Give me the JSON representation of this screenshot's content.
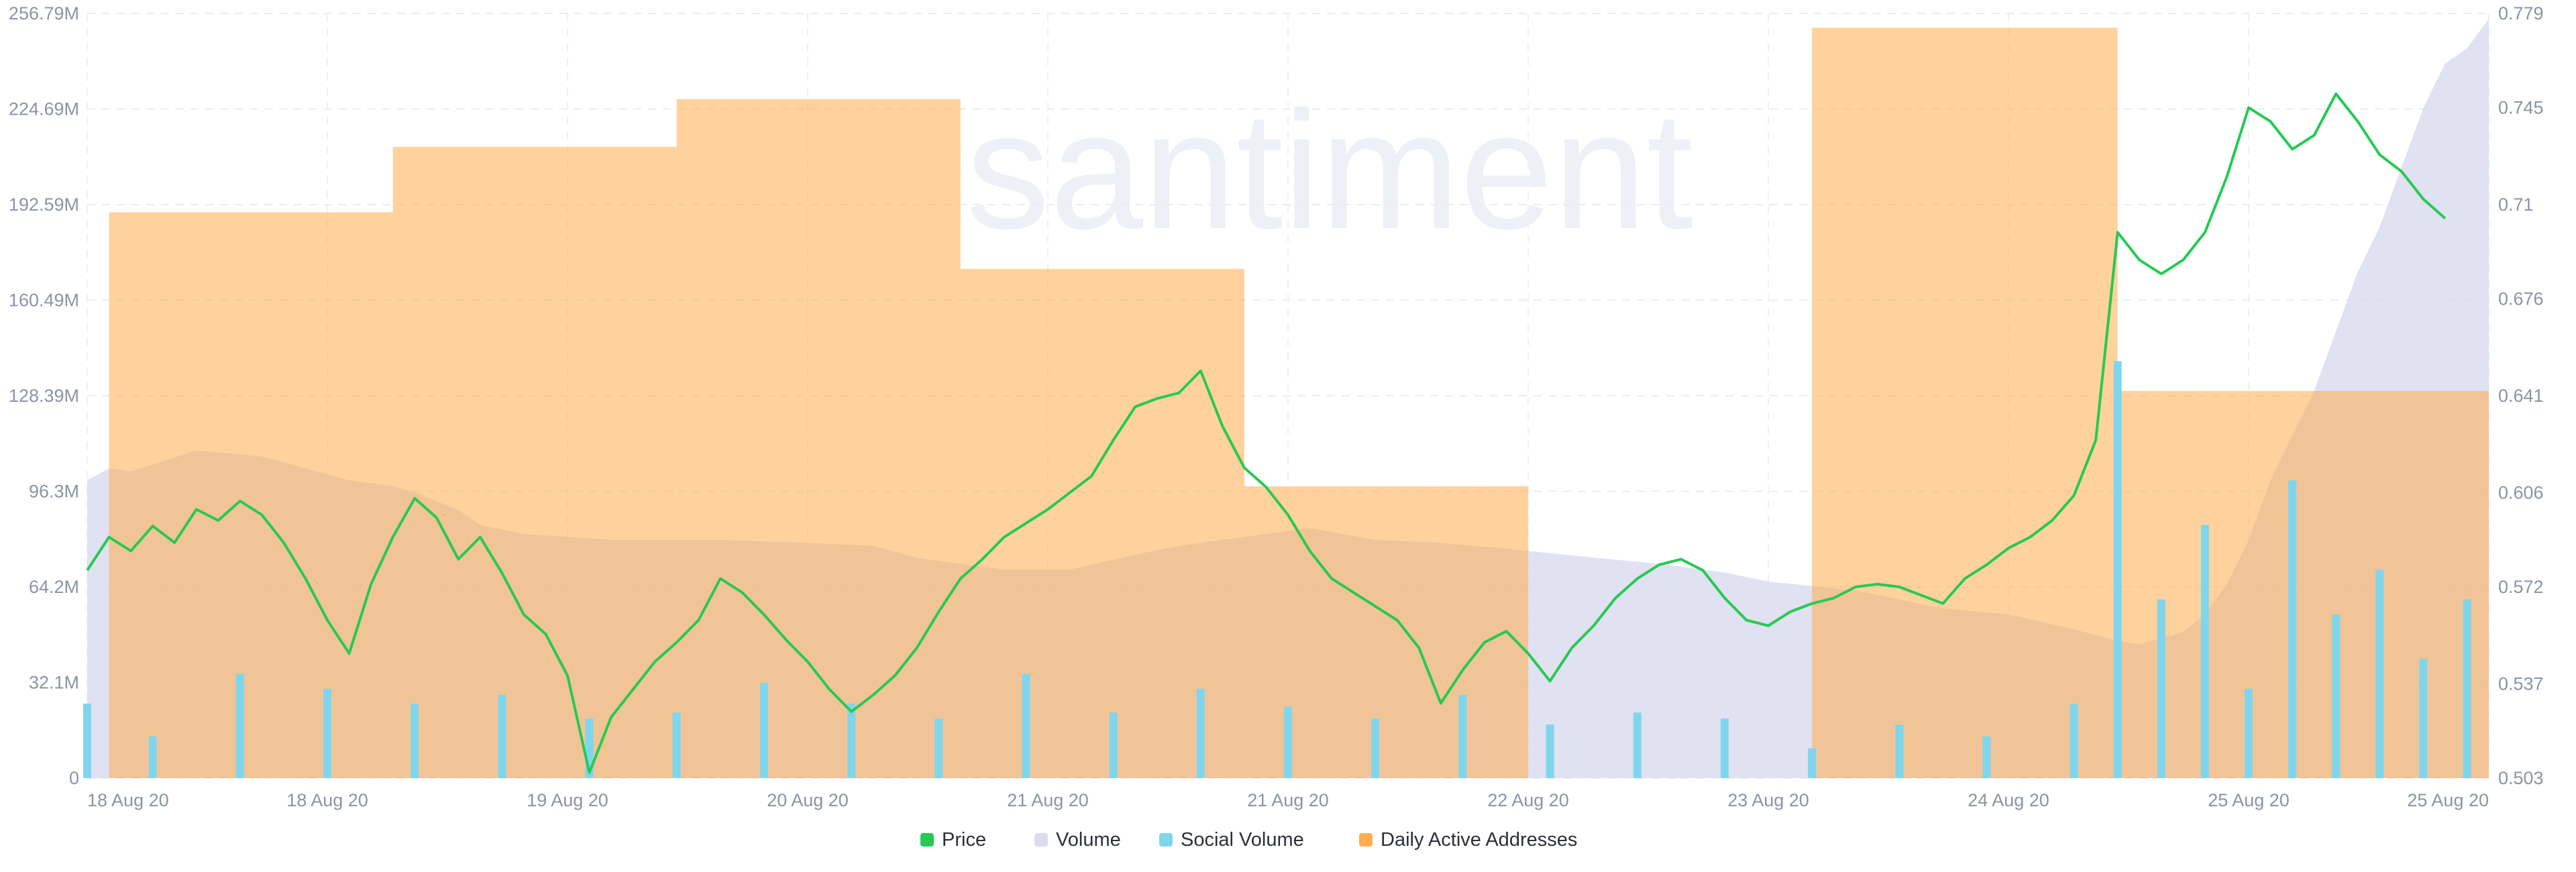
{
  "watermark": "santiment",
  "chart_data": {
    "type": "combo",
    "x_tick_labels": [
      "18 Aug 20",
      "18 Aug 20",
      "19 Aug 20",
      "20 Aug 20",
      "21 Aug 20",
      "21 Aug 20",
      "22 Aug 20",
      "23 Aug 20",
      "24 Aug 20",
      "25 Aug 20",
      "25 Aug 20"
    ],
    "y_left": {
      "range": [
        0,
        256.79
      ],
      "tick_values": [
        0,
        32.1,
        64.2,
        96.3,
        128.39,
        160.49,
        192.59,
        224.69,
        256.79
      ],
      "tick_labels": [
        "0",
        "32.1M",
        "64.2M",
        "96.3M",
        "128.39M",
        "160.49M",
        "192.59M",
        "224.69M",
        "256.79M"
      ]
    },
    "y_right": {
      "range": [
        0.503,
        0.779
      ],
      "tick_values": [
        0.503,
        0.537,
        0.572,
        0.606,
        0.641,
        0.676,
        0.71,
        0.745,
        0.779
      ],
      "tick_labels": [
        "0.503",
        "0.537",
        "0.572",
        "0.606",
        "0.641",
        "0.676",
        "0.71",
        "0.745",
        "0.779"
      ]
    },
    "grid": true,
    "legend_position": "bottom-center",
    "series": [
      {
        "name": "Price",
        "type": "line",
        "axis": "right",
        "color": "#26c953",
        "points": [
          [
            0,
            0.578
          ],
          [
            1,
            0.59
          ],
          [
            2,
            0.585
          ],
          [
            3,
            0.594
          ],
          [
            4,
            0.588
          ],
          [
            5,
            0.6
          ],
          [
            6,
            0.596
          ],
          [
            7,
            0.603
          ],
          [
            8,
            0.598
          ],
          [
            9,
            0.588
          ],
          [
            10,
            0.575
          ],
          [
            11,
            0.56
          ],
          [
            12,
            0.548
          ],
          [
            13,
            0.573
          ],
          [
            14,
            0.59
          ],
          [
            15,
            0.604
          ],
          [
            16,
            0.597
          ],
          [
            17,
            0.582
          ],
          [
            18,
            0.59
          ],
          [
            19,
            0.577
          ],
          [
            20,
            0.562
          ],
          [
            21,
            0.555
          ],
          [
            22,
            0.54
          ],
          [
            23,
            0.505
          ],
          [
            24,
            0.525
          ],
          [
            25,
            0.535
          ],
          [
            26,
            0.545
          ],
          [
            27,
            0.552
          ],
          [
            28,
            0.56
          ],
          [
            29,
            0.575
          ],
          [
            30,
            0.57
          ],
          [
            31,
            0.562
          ],
          [
            32,
            0.553
          ],
          [
            33,
            0.545
          ],
          [
            34,
            0.535
          ],
          [
            35,
            0.527
          ],
          [
            36,
            0.533
          ],
          [
            37,
            0.54
          ],
          [
            38,
            0.55
          ],
          [
            39,
            0.563
          ],
          [
            40,
            0.575
          ],
          [
            41,
            0.582
          ],
          [
            42,
            0.59
          ],
          [
            43,
            0.595
          ],
          [
            44,
            0.6
          ],
          [
            45,
            0.606
          ],
          [
            46,
            0.612
          ],
          [
            47,
            0.625
          ],
          [
            48,
            0.637
          ],
          [
            49,
            0.64
          ],
          [
            50,
            0.642
          ],
          [
            51,
            0.65
          ],
          [
            52,
            0.63
          ],
          [
            53,
            0.615
          ],
          [
            54,
            0.608
          ],
          [
            55,
            0.598
          ],
          [
            56,
            0.585
          ],
          [
            57,
            0.575
          ],
          [
            58,
            0.57
          ],
          [
            59,
            0.565
          ],
          [
            60,
            0.56
          ],
          [
            61,
            0.55
          ],
          [
            62,
            0.53
          ],
          [
            63,
            0.542
          ],
          [
            64,
            0.552
          ],
          [
            65,
            0.556
          ],
          [
            66,
            0.548
          ],
          [
            67,
            0.538
          ],
          [
            68,
            0.55
          ],
          [
            69,
            0.558
          ],
          [
            70,
            0.568
          ],
          [
            71,
            0.575
          ],
          [
            72,
            0.58
          ],
          [
            73,
            0.582
          ],
          [
            74,
            0.578
          ],
          [
            75,
            0.568
          ],
          [
            76,
            0.56
          ],
          [
            77,
            0.558
          ],
          [
            78,
            0.563
          ],
          [
            79,
            0.566
          ],
          [
            80,
            0.568
          ],
          [
            81,
            0.572
          ],
          [
            82,
            0.573
          ],
          [
            83,
            0.572
          ],
          [
            84,
            0.569
          ],
          [
            85,
            0.566
          ],
          [
            86,
            0.575
          ],
          [
            87,
            0.58
          ],
          [
            88,
            0.586
          ],
          [
            89,
            0.59
          ],
          [
            90,
            0.596
          ],
          [
            91,
            0.605
          ],
          [
            92,
            0.625
          ],
          [
            93,
            0.7
          ],
          [
            94,
            0.69
          ],
          [
            95,
            0.685
          ],
          [
            96,
            0.69
          ],
          [
            97,
            0.7
          ],
          [
            98,
            0.72
          ],
          [
            99,
            0.745
          ],
          [
            100,
            0.74
          ],
          [
            101,
            0.73
          ],
          [
            102,
            0.735
          ],
          [
            103,
            0.75
          ],
          [
            104,
            0.74
          ],
          [
            105,
            0.728
          ],
          [
            106,
            0.722
          ],
          [
            107,
            0.712
          ],
          [
            108,
            0.705
          ]
        ]
      },
      {
        "name": "Volume",
        "type": "area",
        "axis": "left",
        "color": "#dadcee",
        "points": [
          [
            0,
            100
          ],
          [
            1,
            104
          ],
          [
            2,
            103
          ],
          [
            5,
            110
          ],
          [
            8,
            108
          ],
          [
            10,
            104
          ],
          [
            12,
            100
          ],
          [
            14,
            98
          ],
          [
            15,
            96
          ],
          [
            17,
            90
          ],
          [
            18,
            85
          ],
          [
            20,
            82
          ],
          [
            24,
            80
          ],
          [
            29,
            80
          ],
          [
            33,
            79
          ],
          [
            36,
            78
          ],
          [
            38,
            74
          ],
          [
            42,
            70
          ],
          [
            45,
            70
          ],
          [
            48,
            75
          ],
          [
            50,
            78
          ],
          [
            54,
            82
          ],
          [
            56,
            84
          ],
          [
            59,
            80
          ],
          [
            62,
            79
          ],
          [
            65,
            77
          ],
          [
            69,
            74
          ],
          [
            72,
            72
          ],
          [
            75,
            69
          ],
          [
            77,
            66
          ],
          [
            81,
            63
          ],
          [
            85,
            57
          ],
          [
            88,
            55
          ],
          [
            91,
            50
          ],
          [
            92,
            48
          ],
          [
            93,
            46
          ],
          [
            94,
            45
          ],
          [
            96,
            49
          ],
          [
            97,
            55
          ],
          [
            98,
            65
          ],
          [
            99,
            80
          ],
          [
            100,
            100
          ],
          [
            101,
            115
          ],
          [
            102,
            130
          ],
          [
            103,
            150
          ],
          [
            104,
            170
          ],
          [
            105,
            185
          ],
          [
            106,
            205
          ],
          [
            107,
            225
          ],
          [
            108,
            240
          ],
          [
            109,
            245
          ],
          [
            110,
            255
          ]
        ]
      },
      {
        "name": "Social Volume",
        "type": "bar",
        "axis": "left",
        "color": "#7fd6ec",
        "values_note": "hourly bars, mostly 0–30M",
        "points": [
          [
            0,
            25
          ],
          [
            3,
            14
          ],
          [
            7,
            35
          ],
          [
            11,
            30
          ],
          [
            15,
            25
          ],
          [
            19,
            28
          ],
          [
            23,
            20
          ],
          [
            27,
            22
          ],
          [
            31,
            32
          ],
          [
            35,
            25
          ],
          [
            39,
            20
          ],
          [
            43,
            35
          ],
          [
            47,
            22
          ],
          [
            51,
            30
          ],
          [
            55,
            24
          ],
          [
            59,
            20
          ],
          [
            63,
            28
          ],
          [
            67,
            18
          ],
          [
            71,
            22
          ],
          [
            75,
            20
          ],
          [
            79,
            10
          ],
          [
            83,
            18
          ],
          [
            87,
            14
          ],
          [
            91,
            25
          ],
          [
            93,
            140
          ],
          [
            95,
            60
          ],
          [
            97,
            85
          ],
          [
            99,
            30
          ],
          [
            101,
            100
          ],
          [
            103,
            55
          ],
          [
            105,
            70
          ],
          [
            107,
            40
          ],
          [
            109,
            60
          ]
        ]
      },
      {
        "name": "Daily Active Addresses",
        "type": "step",
        "axis": "left",
        "color": "#ffad4d",
        "points": [
          [
            1,
            190
          ],
          [
            14,
            212
          ],
          [
            27,
            228
          ],
          [
            40,
            171
          ],
          [
            53,
            98
          ],
          [
            66,
            0
          ],
          [
            79,
            252
          ],
          [
            92,
            252
          ],
          [
            93,
            130
          ],
          [
            106,
            130
          ]
        ]
      }
    ]
  }
}
